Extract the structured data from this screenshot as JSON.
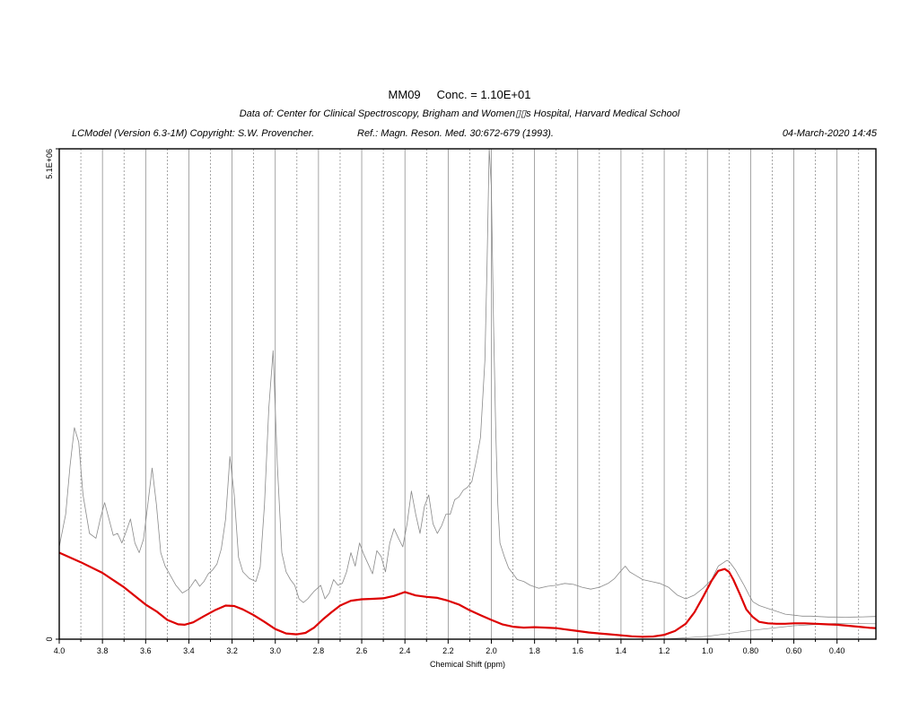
{
  "header": {
    "title_name": "MM09",
    "title_conc": "Conc. = 1.10E+01",
    "data_of": "Data of: Center for Clinical Spectroscopy, Brigham and Women▯▯s Hospital, Harvard Medical School",
    "software": "LCModel (Version 6.3-1M) Copyright: S.W. Provencher.",
    "reference": "Ref.: Magn. Reson. Med. 30:672-679 (1993).",
    "timestamp": "04-March-2020  14:45"
  },
  "chart_data": {
    "type": "line",
    "title": "MM09",
    "xlabel": "Chemical Shift (ppm)",
    "ylabel": "",
    "xlim": [
      4.0,
      0.22
    ],
    "x_reversed": true,
    "ylim": [
      0,
      5100000
    ],
    "ytick_labels": [
      "0",
      "5.1E+06"
    ],
    "yticks": [
      0,
      5100000
    ],
    "xticks": [
      4.0,
      3.8,
      3.6,
      3.4,
      3.2,
      3.0,
      2.8,
      2.6,
      2.4,
      2.2,
      2.0,
      1.8,
      1.6,
      1.4,
      1.2,
      1.0,
      0.8,
      0.6,
      0.4
    ],
    "xtick_labels": [
      "4.0",
      "3.8",
      "3.6",
      "3.4",
      "3.2",
      "3.0",
      "2.8",
      "2.6",
      "2.4",
      "2.2",
      "2.0",
      "1.8",
      "1.6",
      "1.4",
      "1.2",
      "1.0",
      "0.80",
      "0.60",
      "0.40"
    ],
    "grid": true,
    "colors": {
      "data": "#8a8a8a",
      "fit": "#dd0000",
      "baseline": "#8a8a8a"
    },
    "series": [
      {
        "role": "data",
        "x": [
          4.0,
          3.97,
          3.95,
          3.93,
          3.91,
          3.89,
          3.86,
          3.83,
          3.81,
          3.79,
          3.77,
          3.75,
          3.73,
          3.71,
          3.69,
          3.67,
          3.65,
          3.63,
          3.61,
          3.59,
          3.57,
          3.55,
          3.53,
          3.51,
          3.49,
          3.46,
          3.43,
          3.4,
          3.37,
          3.35,
          3.33,
          3.31,
          3.29,
          3.27,
          3.25,
          3.23,
          3.21,
          3.19,
          3.17,
          3.15,
          3.12,
          3.09,
          3.07,
          3.05,
          3.03,
          3.01,
          2.99,
          2.97,
          2.95,
          2.93,
          2.91,
          2.89,
          2.87,
          2.85,
          2.82,
          2.79,
          2.77,
          2.75,
          2.73,
          2.71,
          2.69,
          2.67,
          2.65,
          2.63,
          2.61,
          2.59,
          2.57,
          2.55,
          2.53,
          2.51,
          2.49,
          2.47,
          2.45,
          2.43,
          2.41,
          2.39,
          2.37,
          2.35,
          2.33,
          2.31,
          2.29,
          2.27,
          2.25,
          2.23,
          2.21,
          2.19,
          2.17,
          2.15,
          2.13,
          2.11,
          2.09,
          2.07,
          2.05,
          2.03,
          2.02,
          2.01,
          2.0,
          1.99,
          1.98,
          1.97,
          1.96,
          1.94,
          1.92,
          1.9,
          1.88,
          1.85,
          1.82,
          1.78,
          1.74,
          1.7,
          1.66,
          1.62,
          1.58,
          1.54,
          1.5,
          1.46,
          1.43,
          1.4,
          1.38,
          1.36,
          1.33,
          1.3,
          1.26,
          1.22,
          1.18,
          1.14,
          1.1,
          1.06,
          1.02,
          0.98,
          0.95,
          0.93,
          0.91,
          0.9,
          0.89,
          0.87,
          0.85,
          0.83,
          0.81,
          0.79,
          0.76,
          0.72,
          0.68,
          0.64,
          0.6,
          0.56,
          0.52,
          0.48,
          0.44,
          0.4,
          0.36,
          0.32,
          0.28,
          0.24,
          0.22
        ],
        "y": [
          960000,
          1300000,
          1800000,
          2200000,
          2050000,
          1500000,
          1100000,
          1050000,
          1250000,
          1420000,
          1250000,
          1080000,
          1100000,
          1000000,
          1120000,
          1250000,
          1000000,
          900000,
          1040000,
          1400000,
          1780000,
          1400000,
          900000,
          760000,
          680000,
          560000,
          480000,
          520000,
          620000,
          550000,
          600000,
          680000,
          720000,
          780000,
          940000,
          1250000,
          1900000,
          1500000,
          850000,
          700000,
          630000,
          600000,
          750000,
          1400000,
          2400000,
          3000000,
          1800000,
          900000,
          700000,
          620000,
          560000,
          420000,
          380000,
          420000,
          500000,
          560000,
          420000,
          480000,
          620000,
          560000,
          580000,
          700000,
          900000,
          760000,
          1000000,
          880000,
          780000,
          680000,
          920000,
          860000,
          700000,
          1000000,
          1150000,
          1050000,
          960000,
          1200000,
          1540000,
          1300000,
          1100000,
          1380000,
          1500000,
          1200000,
          1100000,
          1180000,
          1300000,
          1300000,
          1450000,
          1480000,
          1550000,
          1580000,
          1640000,
          1850000,
          2100000,
          2900000,
          3900000,
          5100000,
          4700000,
          3300000,
          2200000,
          1400000,
          1000000,
          860000,
          740000,
          680000,
          620000,
          600000,
          560000,
          530000,
          550000,
          560000,
          580000,
          570000,
          540000,
          520000,
          540000,
          580000,
          630000,
          710000,
          760000,
          700000,
          660000,
          620000,
          600000,
          580000,
          540000,
          460000,
          420000,
          460000,
          530000,
          620000,
          760000,
          790000,
          820000,
          810000,
          780000,
          720000,
          640000,
          560000,
          470000,
          390000,
          350000,
          320000,
          290000,
          260000,
          250000,
          240000,
          240000,
          235000,
          230000,
          230000,
          228000,
          230000,
          232000,
          235000,
          236000
        ]
      },
      {
        "role": "fit",
        "x": [
          4.0,
          3.9,
          3.8,
          3.7,
          3.6,
          3.55,
          3.5,
          3.45,
          3.42,
          3.38,
          3.33,
          3.28,
          3.23,
          3.19,
          3.15,
          3.1,
          3.05,
          3.0,
          2.95,
          2.9,
          2.86,
          2.82,
          2.78,
          2.74,
          2.7,
          2.65,
          2.6,
          2.55,
          2.5,
          2.45,
          2.4,
          2.35,
          2.3,
          2.25,
          2.2,
          2.15,
          2.1,
          2.05,
          2.0,
          1.95,
          1.9,
          1.85,
          1.8,
          1.75,
          1.7,
          1.65,
          1.6,
          1.55,
          1.5,
          1.45,
          1.4,
          1.35,
          1.3,
          1.25,
          1.2,
          1.15,
          1.1,
          1.06,
          1.02,
          0.98,
          0.95,
          0.92,
          0.9,
          0.88,
          0.85,
          0.82,
          0.79,
          0.76,
          0.72,
          0.68,
          0.64,
          0.6,
          0.55,
          0.5,
          0.45,
          0.4,
          0.35,
          0.3,
          0.25,
          0.22
        ],
        "y": [
          900000,
          800000,
          690000,
          540000,
          360000,
          290000,
          200000,
          155000,
          150000,
          175000,
          240000,
          300000,
          350000,
          345000,
          310000,
          250000,
          180000,
          105000,
          60000,
          50000,
          65000,
          120000,
          205000,
          280000,
          350000,
          400000,
          415000,
          420000,
          425000,
          450000,
          490000,
          455000,
          440000,
          430000,
          400000,
          360000,
          300000,
          250000,
          200000,
          155000,
          130000,
          120000,
          125000,
          120000,
          115000,
          100000,
          85000,
          70000,
          60000,
          50000,
          40000,
          30000,
          25000,
          28000,
          45000,
          85000,
          160000,
          280000,
          440000,
          610000,
          710000,
          730000,
          700000,
          620000,
          470000,
          310000,
          230000,
          180000,
          165000,
          160000,
          160000,
          165000,
          165000,
          160000,
          155000,
          150000,
          140000,
          130000,
          118000,
          115000
        ]
      },
      {
        "role": "baseline",
        "x": [
          4.0,
          2.0,
          1.5,
          1.2,
          1.0,
          0.8,
          0.6,
          0.4,
          0.22
        ],
        "y": [
          0,
          0,
          0,
          0,
          30000,
          90000,
          140000,
          165000,
          160000
        ]
      }
    ]
  }
}
